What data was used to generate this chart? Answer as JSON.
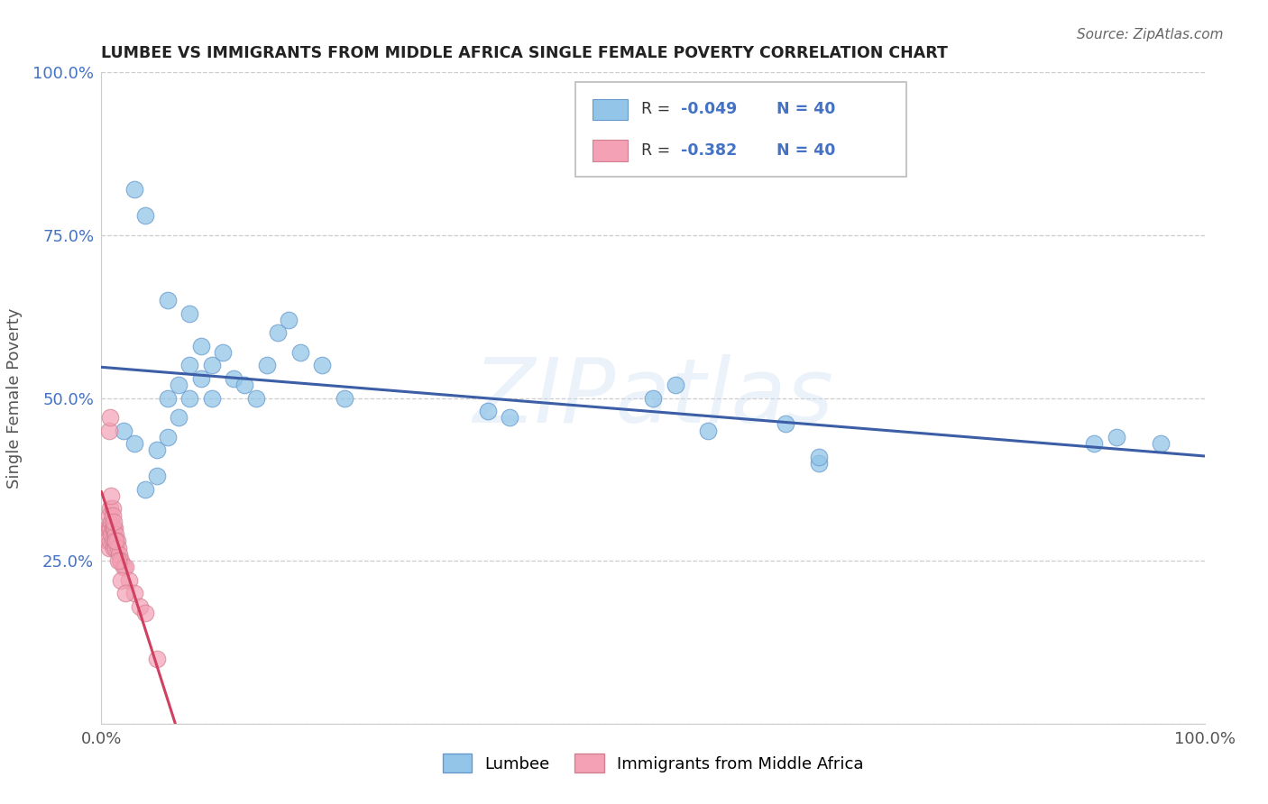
{
  "title": "LUMBEE VS IMMIGRANTS FROM MIDDLE AFRICA SINGLE FEMALE POVERTY CORRELATION CHART",
  "source": "Source: ZipAtlas.com",
  "ylabel": "Single Female Poverty",
  "watermark": "ZIPatlas",
  "xlim": [
    0,
    1.0
  ],
  "ylim": [
    0,
    1.0
  ],
  "color_lumbee": "#92C5E8",
  "color_africa": "#F4A0B5",
  "line_color_lumbee": "#3B5EA6",
  "line_color_africa": "#D04060",
  "background_color": "#FFFFFF",
  "grid_color": "#C8C8C8",
  "lumbee_x": [
    0.02,
    0.03,
    0.04,
    0.05,
    0.05,
    0.06,
    0.06,
    0.07,
    0.07,
    0.08,
    0.08,
    0.09,
    0.09,
    0.1,
    0.1,
    0.11,
    0.12,
    0.13,
    0.14,
    0.15,
    0.16,
    0.17,
    0.18,
    0.2,
    0.22,
    0.37,
    0.52,
    0.55,
    0.65,
    0.9,
    0.03,
    0.04,
    0.06,
    0.08,
    0.35,
    0.5,
    0.62,
    0.65,
    0.92,
    0.96
  ],
  "lumbee_y": [
    0.45,
    0.43,
    0.36,
    0.38,
    0.42,
    0.44,
    0.5,
    0.47,
    0.52,
    0.5,
    0.55,
    0.53,
    0.58,
    0.5,
    0.55,
    0.57,
    0.53,
    0.52,
    0.5,
    0.55,
    0.6,
    0.62,
    0.57,
    0.55,
    0.5,
    0.47,
    0.52,
    0.45,
    0.4,
    0.43,
    0.82,
    0.78,
    0.65,
    0.63,
    0.48,
    0.5,
    0.46,
    0.41,
    0.44,
    0.43
  ],
  "africa_x": [
    0.005,
    0.005,
    0.007,
    0.007,
    0.007,
    0.008,
    0.008,
    0.008,
    0.009,
    0.009,
    0.01,
    0.01,
    0.01,
    0.011,
    0.011,
    0.012,
    0.012,
    0.013,
    0.013,
    0.014,
    0.015,
    0.016,
    0.017,
    0.018,
    0.02,
    0.022,
    0.025,
    0.03,
    0.035,
    0.04,
    0.007,
    0.008,
    0.009,
    0.01,
    0.011,
    0.013,
    0.015,
    0.018,
    0.022,
    0.05
  ],
  "africa_y": [
    0.3,
    0.28,
    0.32,
    0.3,
    0.27,
    0.33,
    0.3,
    0.28,
    0.31,
    0.29,
    0.33,
    0.3,
    0.28,
    0.3,
    0.27,
    0.3,
    0.28,
    0.29,
    0.27,
    0.28,
    0.27,
    0.26,
    0.25,
    0.25,
    0.24,
    0.24,
    0.22,
    0.2,
    0.18,
    0.17,
    0.45,
    0.47,
    0.35,
    0.32,
    0.31,
    0.28,
    0.25,
    0.22,
    0.2,
    0.1
  ],
  "africa_line_x_end": 0.16,
  "lumbee_line_intercept": 0.485,
  "lumbee_line_slope": -0.049,
  "africa_line_intercept": 0.35,
  "africa_line_slope": -1.5
}
